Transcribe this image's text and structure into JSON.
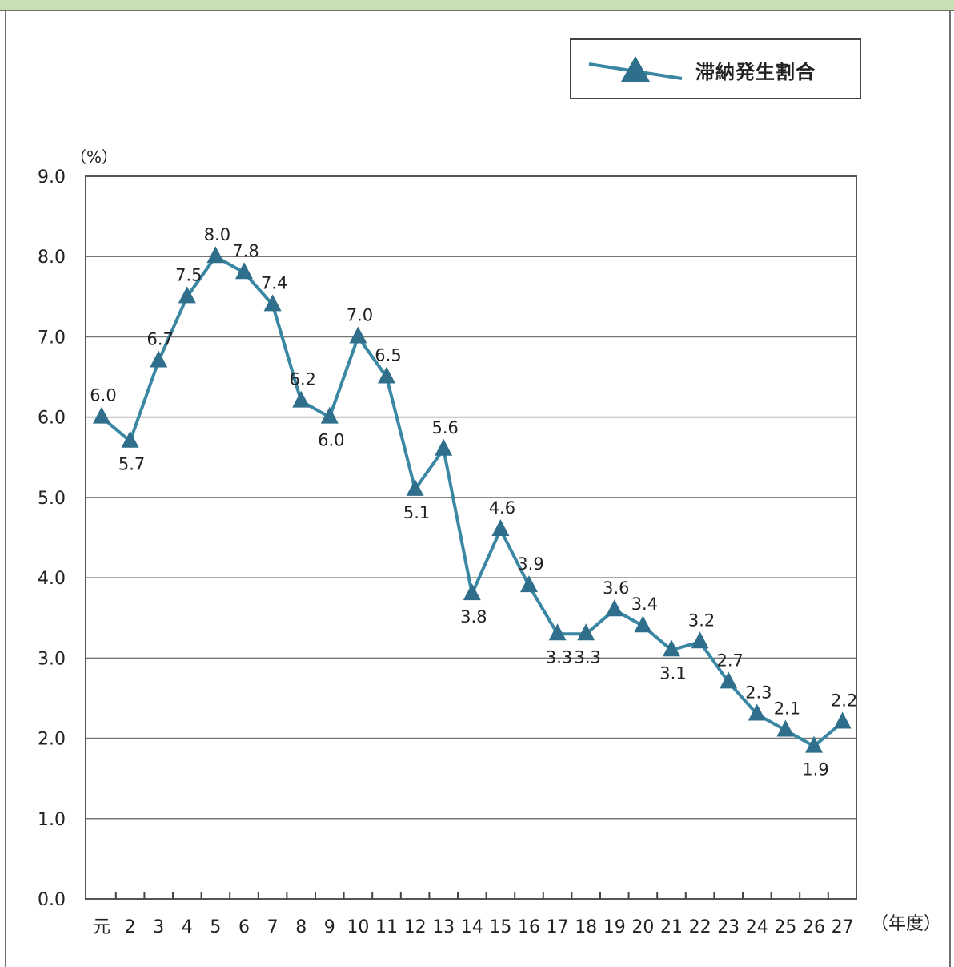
{
  "chart_data": {
    "type": "line",
    "title": "",
    "xlabel": "（年度）",
    "ylabel": "（%）",
    "ylim": [
      0,
      9
    ],
    "y_ticks": [
      "0.0",
      "1.0",
      "2.0",
      "3.0",
      "4.0",
      "5.0",
      "6.0",
      "7.0",
      "8.0",
      "9.0"
    ],
    "grid": true,
    "legend_position": "top-right",
    "categories": [
      "元",
      "2",
      "3",
      "4",
      "5",
      "6",
      "7",
      "8",
      "9",
      "10",
      "11",
      "12",
      "13",
      "14",
      "15",
      "16",
      "17",
      "18",
      "19",
      "20",
      "21",
      "22",
      "23",
      "24",
      "25",
      "26",
      "27"
    ],
    "series": [
      {
        "name": "滞納発生割合",
        "color": "#3a87a4",
        "marker_color": "#2f6f8c",
        "marker": "triangle",
        "values": [
          6.0,
          5.7,
          6.7,
          7.5,
          8.0,
          7.8,
          7.4,
          6.2,
          6.0,
          7.0,
          6.5,
          5.1,
          5.6,
          3.8,
          4.6,
          3.9,
          3.3,
          3.3,
          3.6,
          3.4,
          3.1,
          3.2,
          2.7,
          2.3,
          2.1,
          1.9,
          2.2
        ]
      }
    ]
  }
}
